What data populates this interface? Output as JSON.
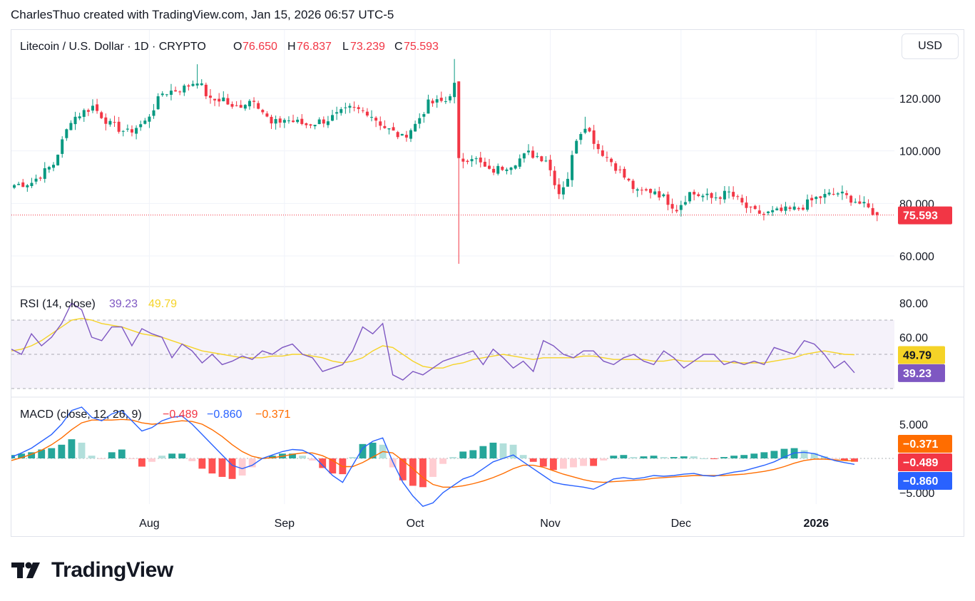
{
  "credit": "CharlesThuo created with TradingView.com, Jan 15, 2026 06:57 UTC-5",
  "currency": "USD",
  "logo_text": "TradingView",
  "colors": {
    "up": "#089981",
    "down": "#f23645",
    "rsi": "#7e57c2",
    "rsi_ma": "#f5d327",
    "macd": "#2962ff",
    "signal": "#ff6d00"
  },
  "header": {
    "symbol": "Litecoin / U.S. Dollar · 1D · CRYPTO",
    "o_label": "O",
    "o_value": "76.650",
    "h_label": "H",
    "h_value": "76.837",
    "l_label": "L",
    "l_value": "73.239",
    "c_label": "C",
    "c_value": "75.593"
  },
  "rsi_legend": {
    "label": "RSI (14, close)",
    "value1": "39.23",
    "value2": "49.79"
  },
  "macd_legend": {
    "label": "MACD (close, 12, 26, 9)",
    "value1": "−0.489",
    "value2": "−0.860",
    "value3": "−0.371"
  },
  "chart_data": [
    {
      "type": "candlestick",
      "title": "Litecoin / U.S. Dollar · 1D · CRYPTO",
      "ylim": [
        50,
        140
      ],
      "y_ticks": [
        "120.000",
        "100.000",
        "80.000",
        "60.000"
      ],
      "y_tick_values": [
        120,
        100,
        80,
        60
      ],
      "x_ticks": [
        "Aug",
        "Sep",
        "Oct",
        "Nov",
        "Dec",
        "2026"
      ],
      "last_price": "75.593",
      "ohlc_keypoints": [
        [
          "2025-07-01",
          87
        ],
        [
          "2025-07-05",
          88
        ],
        [
          "2025-07-10",
          95
        ],
        [
          "2025-07-14",
          112
        ],
        [
          "2025-07-19",
          117
        ],
        [
          "2025-07-23",
          110
        ],
        [
          "2025-07-27",
          107
        ],
        [
          "2025-07-31",
          111
        ],
        [
          "2025-08-04",
          122
        ],
        [
          "2025-08-09",
          124
        ],
        [
          "2025-08-12",
          127
        ],
        [
          "2025-08-15",
          119
        ],
        [
          "2025-08-18",
          120
        ],
        [
          "2025-08-20",
          116
        ],
        [
          "2025-08-25",
          120
        ],
        [
          "2025-08-29",
          110
        ],
        [
          "2025-09-01",
          112
        ],
        [
          "2025-09-06",
          110
        ],
        [
          "2025-09-11",
          112
        ],
        [
          "2025-09-16",
          116
        ],
        [
          "2025-09-20",
          115
        ],
        [
          "2025-09-24",
          109
        ],
        [
          "2025-09-28",
          105
        ],
        [
          "2025-10-01",
          110
        ],
        [
          "2025-10-04",
          118
        ],
        [
          "2025-10-08",
          119
        ],
        [
          "2025-10-10",
          125
        ],
        [
          "2025-10-11",
          96
        ],
        [
          "2025-10-14",
          98
        ],
        [
          "2025-10-18",
          92
        ],
        [
          "2025-10-23",
          95
        ],
        [
          "2025-10-27",
          99
        ],
        [
          "2025-10-31",
          97
        ],
        [
          "2025-11-03",
          84
        ],
        [
          "2025-11-05",
          90
        ],
        [
          "2025-11-07",
          105
        ],
        [
          "2025-11-09",
          110
        ],
        [
          "2025-11-12",
          101
        ],
        [
          "2025-11-15",
          96
        ],
        [
          "2025-11-18",
          90
        ],
        [
          "2025-11-21",
          84
        ],
        [
          "2025-11-25",
          85
        ],
        [
          "2025-11-30",
          78
        ],
        [
          "2025-12-03",
          84
        ],
        [
          "2025-12-08",
          82
        ],
        [
          "2025-12-12",
          84
        ],
        [
          "2025-12-17",
          77
        ],
        [
          "2025-12-20",
          76
        ],
        [
          "2025-12-24",
          77
        ],
        [
          "2025-12-28",
          78
        ],
        [
          "2026-01-01",
          82
        ],
        [
          "2026-01-06",
          84
        ],
        [
          "2026-01-10",
          81
        ],
        [
          "2026-01-13",
          78
        ],
        [
          "2026-01-15",
          75.593
        ]
      ],
      "open": 76.65,
      "high": 76.837,
      "low": 73.239,
      "close": 75.593
    },
    {
      "type": "line",
      "title": "RSI (14, close)",
      "ylim": [
        15,
        85
      ],
      "y_ticks": [
        "80.00",
        "60.00"
      ],
      "y_tick_values": [
        80,
        60
      ],
      "band": [
        70,
        30
      ],
      "series": [
        {
          "name": "RSI",
          "last": "39.23",
          "values": [
            53,
            50,
            62,
            55,
            60,
            68,
            80,
            76,
            60,
            58,
            66,
            66,
            55,
            65,
            62,
            60,
            48,
            56,
            52,
            45,
            50,
            44,
            46,
            49,
            47,
            52,
            50,
            54,
            56,
            50,
            48,
            40,
            42,
            44,
            52,
            66,
            62,
            68,
            38,
            35,
            40,
            38,
            42,
            46,
            48,
            50,
            52,
            44,
            53,
            48,
            42,
            46,
            40,
            58,
            55,
            50,
            48,
            52,
            52,
            46,
            44,
            48,
            50,
            46,
            44,
            52,
            48,
            42,
            46,
            50,
            50,
            44,
            46,
            44,
            46,
            44,
            54,
            52,
            50,
            58,
            56,
            50,
            42,
            46,
            39.23
          ]
        },
        {
          "name": "MA",
          "last": "49.79",
          "values": [
            52,
            53,
            55,
            58,
            62,
            66,
            70,
            71,
            70,
            68,
            67,
            66,
            64,
            62,
            61,
            60,
            58,
            56,
            54,
            52,
            51,
            50,
            49,
            48,
            48,
            48,
            49,
            49,
            50,
            50,
            49,
            48,
            46,
            45,
            46,
            48,
            52,
            55,
            54,
            50,
            46,
            43,
            42,
            42,
            44,
            45,
            47,
            48,
            49,
            50,
            49,
            48,
            47,
            48,
            48,
            48,
            48,
            49,
            49,
            48,
            47,
            47,
            47,
            47,
            46,
            46,
            47,
            46,
            46,
            46,
            46,
            46,
            45,
            45,
            45,
            45,
            46,
            47,
            48,
            50,
            51,
            52,
            51,
            50,
            49.79
          ]
        }
      ]
    },
    {
      "type": "bar+line",
      "title": "MACD (close, 12, 26, 9)",
      "ylim": [
        -9,
        9
      ],
      "y_ticks": [
        "5.000",
        "−5.000"
      ],
      "y_tick_values": [
        5,
        -5
      ],
      "series": [
        {
          "name": "Histogram",
          "last": "−0.489"
        },
        {
          "name": "MACD",
          "last": "−0.860",
          "values": [
            0.2,
            0.8,
            1.5,
            2.5,
            3.5,
            5,
            7,
            7.5,
            6,
            5.5,
            6.5,
            7,
            5.5,
            4,
            4.5,
            5.5,
            6,
            6.2,
            5,
            3.5,
            2,
            0.5,
            -1,
            -1.5,
            -1,
            0,
            0.5,
            1,
            1.3,
            1.2,
            0.5,
            -1,
            -2.5,
            -3.5,
            -1,
            1.5,
            2.5,
            3,
            -0.5,
            -3.5,
            -5.5,
            -7,
            -6.5,
            -5,
            -4,
            -3,
            -2.5,
            -1.5,
            -0.5,
            0,
            0.5,
            -0.5,
            -1.5,
            -2.5,
            -3.5,
            -3.8,
            -4,
            -4.2,
            -4.5,
            -3.8,
            -3,
            -2.8,
            -3,
            -2.8,
            -2.5,
            -2.6,
            -2.5,
            -2.3,
            -2.2,
            -2.5,
            -2.6,
            -2.3,
            -2,
            -1.8,
            -1.4,
            -1,
            -0.5,
            0.2,
            0.8,
            0.9,
            0.7,
            0.2,
            -0.3,
            -0.6,
            -0.86
          ]
        },
        {
          "name": "Signal",
          "last": "−0.371",
          "values": [
            -0.3,
            0.1,
            0.6,
            1.2,
            2,
            3,
            4.2,
            5.2,
            5.6,
            5.6,
            5.6,
            5.7,
            5.6,
            5.2,
            5,
            5.1,
            5.3,
            5.5,
            5.4,
            5,
            4.2,
            3.2,
            2,
            1,
            0.3,
            0,
            0.1,
            0.3,
            0.6,
            0.8,
            0.8,
            0.4,
            -0.3,
            -1.2,
            -1.2,
            -0.6,
            0.2,
            1,
            0.8,
            -0.3,
            -1.5,
            -2.8,
            -3.8,
            -4.2,
            -4.2,
            -4,
            -3.7,
            -3.3,
            -2.8,
            -2.2,
            -1.5,
            -1,
            -1,
            -1.3,
            -1.8,
            -2.3,
            -2.7,
            -3.1,
            -3.4,
            -3.5,
            -3.4,
            -3.3,
            -3.2,
            -3.1,
            -2.9,
            -2.8,
            -2.7,
            -2.6,
            -2.5,
            -2.5,
            -2.5,
            -2.5,
            -2.4,
            -2.3,
            -2.1,
            -1.9,
            -1.6,
            -1.2,
            -0.7,
            -0.3,
            -0.1,
            -0.1,
            -0.2,
            -0.3,
            -0.371
          ]
        }
      ]
    }
  ]
}
